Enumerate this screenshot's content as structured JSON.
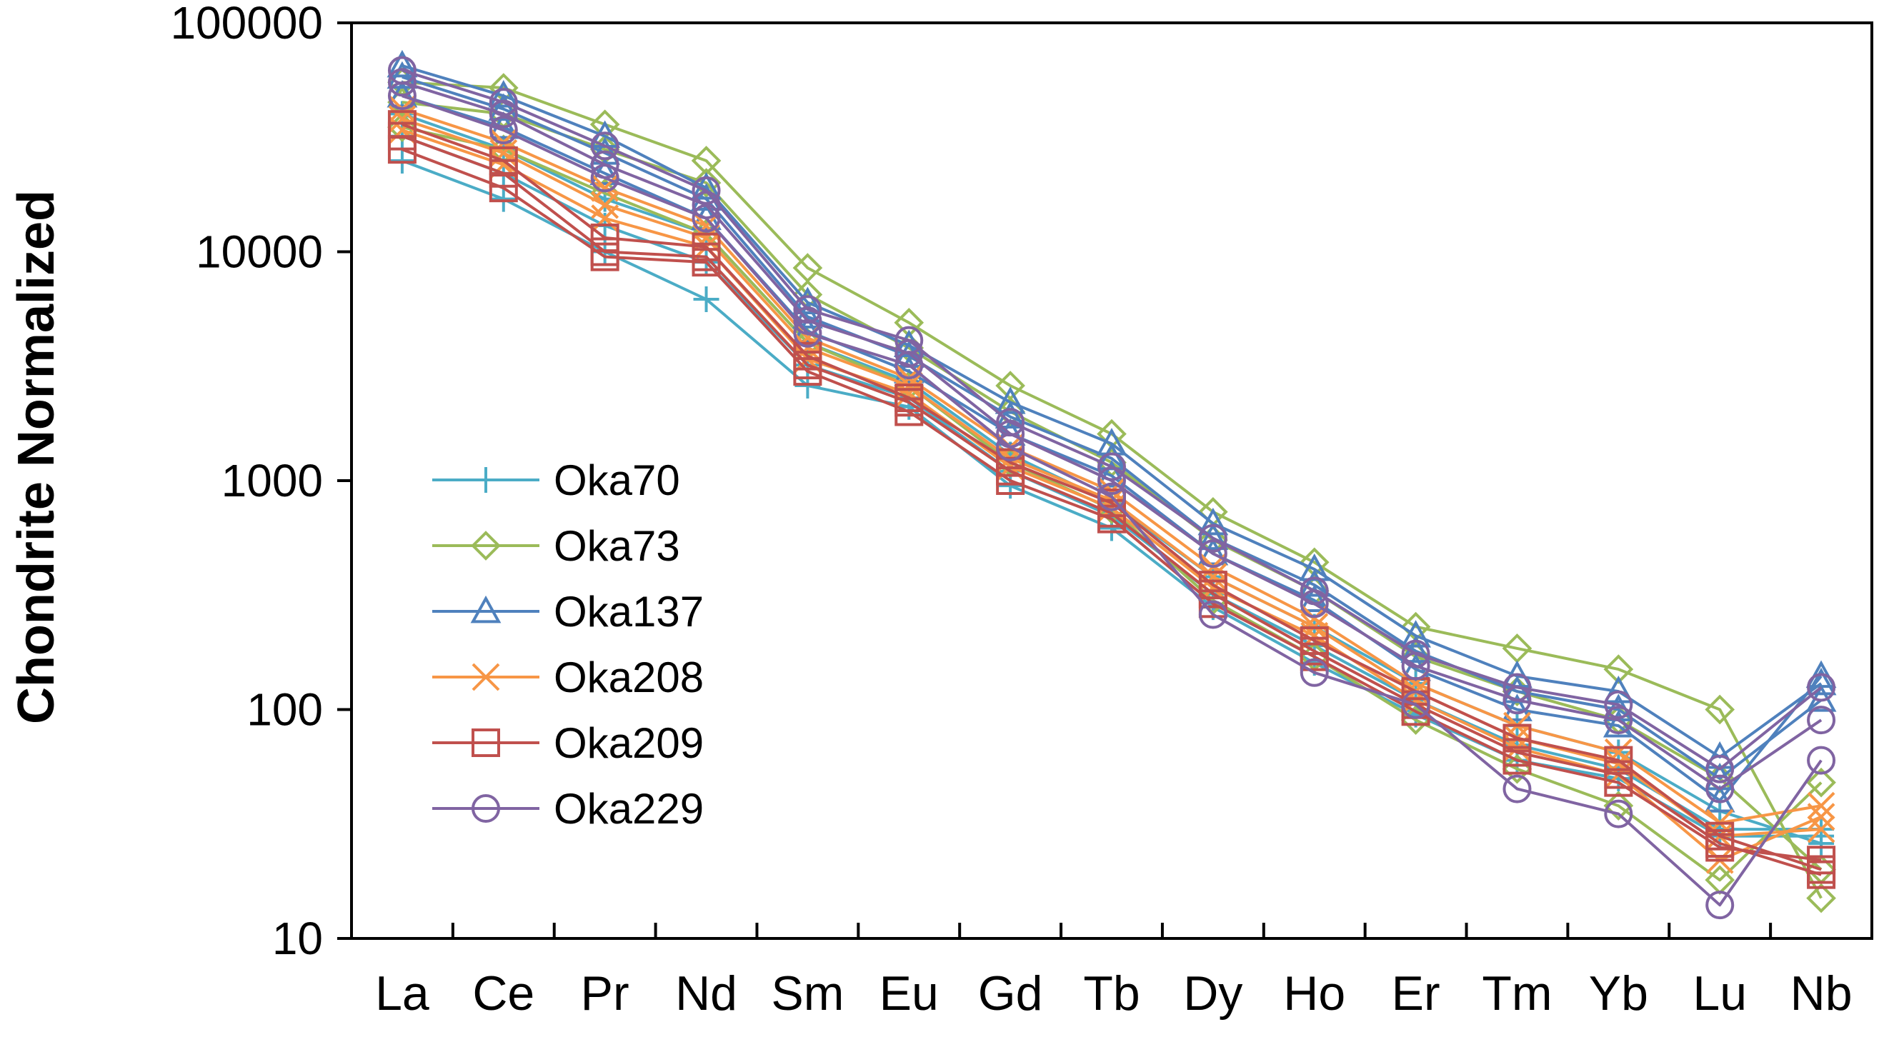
{
  "chart_data": {
    "type": "line",
    "title": "",
    "xlabel": "",
    "ylabel": "Chondrite Normalized",
    "yscale": "log",
    "ylim": [
      10,
      100000
    ],
    "yticks": [
      "10",
      "100",
      "1000",
      "10000",
      "100000"
    ],
    "yticks_values": [
      10,
      100,
      1000,
      10000,
      100000
    ],
    "legend_position": "left-middle",
    "grid": false,
    "categories": [
      "La",
      "Ce",
      "Pr",
      "Nd",
      "Sm",
      "Eu",
      "Gd",
      "Tb",
      "Dy",
      "Ho",
      "Er",
      "Tm",
      "Yb",
      "Lu",
      "Nb"
    ],
    "series": [
      {
        "name": "Oka70",
        "color": "#4bacc6",
        "marker": "plus",
        "samples": [
          [
            25000,
            17000,
            10000,
            6200,
            2600,
            2100,
            950,
            620,
            280,
            160,
            95,
            60,
            50,
            28,
            28
          ],
          [
            32000,
            22000,
            13000,
            9000,
            3200,
            2300,
            1100,
            700,
            320,
            190,
            110,
            70,
            55,
            30,
            30
          ],
          [
            40000,
            28000,
            17000,
            12000,
            4000,
            2700,
            1300,
            800,
            380,
            230,
            130,
            85,
            65,
            36,
            26
          ]
        ]
      },
      {
        "name": "Oka73",
        "color": "#9bbb59",
        "marker": "diamond",
        "samples": [
          [
            55000,
            52000,
            36000,
            25000,
            8500,
            4900,
            2600,
            1600,
            730,
            440,
            230,
            185,
            150,
            100,
            15
          ],
          [
            45000,
            40000,
            28000,
            20000,
            6500,
            3800,
            2000,
            1200,
            550,
            330,
            170,
            120,
            90,
            50,
            20
          ],
          [
            35000,
            28000,
            18000,
            12000,
            4000,
            2600,
            1200,
            750,
            300,
            170,
            90,
            55,
            38,
            18,
            48
          ]
        ]
      },
      {
        "name": "Oka137",
        "color": "#4f81bd",
        "marker": "triangle",
        "samples": [
          [
            65000,
            48000,
            32000,
            19000,
            6000,
            3900,
            2200,
            1450,
            650,
            410,
            210,
            140,
            120,
            62,
            130
          ],
          [
            58000,
            42000,
            27000,
            17000,
            5200,
            3500,
            1900,
            1250,
            560,
            350,
            180,
            120,
            100,
            50,
            110
          ],
          [
            48000,
            35000,
            22000,
            14000,
            4500,
            3000,
            1600,
            1050,
            480,
            300,
            150,
            100,
            85,
            40,
            140
          ]
        ]
      },
      {
        "name": "Oka208",
        "color": "#f79646",
        "marker": "x",
        "samples": [
          [
            42000,
            30000,
            19000,
            13000,
            4200,
            2800,
            1400,
            900,
            420,
            250,
            130,
            85,
            65,
            32,
            38
          ],
          [
            38000,
            27000,
            16000,
            11500,
            3800,
            2600,
            1250,
            820,
            380,
            230,
            120,
            75,
            58,
            28,
            30
          ],
          [
            34000,
            24000,
            14000,
            10500,
            3400,
            2400,
            1150,
            760,
            340,
            210,
            110,
            68,
            52,
            22,
            34
          ]
        ]
      },
      {
        "name": "Oka209",
        "color": "#c0504d",
        "marker": "square",
        "samples": [
          [
            36000,
            25000,
            11500,
            10500,
            3500,
            2300,
            1200,
            800,
            350,
            200,
            120,
            75,
            60,
            28,
            20
          ],
          [
            32000,
            22000,
            10000,
            9500,
            3200,
            2200,
            1100,
            720,
            320,
            180,
            105,
            65,
            52,
            26,
            19
          ],
          [
            28000,
            19000,
            9500,
            9000,
            3000,
            2000,
            1000,
            680,
            290,
            170,
            98,
            60,
            48,
            25,
            22
          ]
        ]
      },
      {
        "name": "Oka229",
        "color": "#8064a2",
        "marker": "circle",
        "samples": [
          [
            62000,
            45000,
            29000,
            18500,
            5600,
            4100,
            1800,
            1150,
            560,
            330,
            175,
            125,
            105,
            55,
            125
          ],
          [
            55000,
            40000,
            24000,
            16000,
            5000,
            3600,
            1600,
            1000,
            480,
            290,
            155,
            110,
            90,
            45,
            90
          ],
          [
            48000,
            34000,
            21000,
            14000,
            4400,
            3200,
            1400,
            850,
            260,
            145,
            105,
            45,
            35,
            14,
            60
          ]
        ]
      }
    ]
  }
}
